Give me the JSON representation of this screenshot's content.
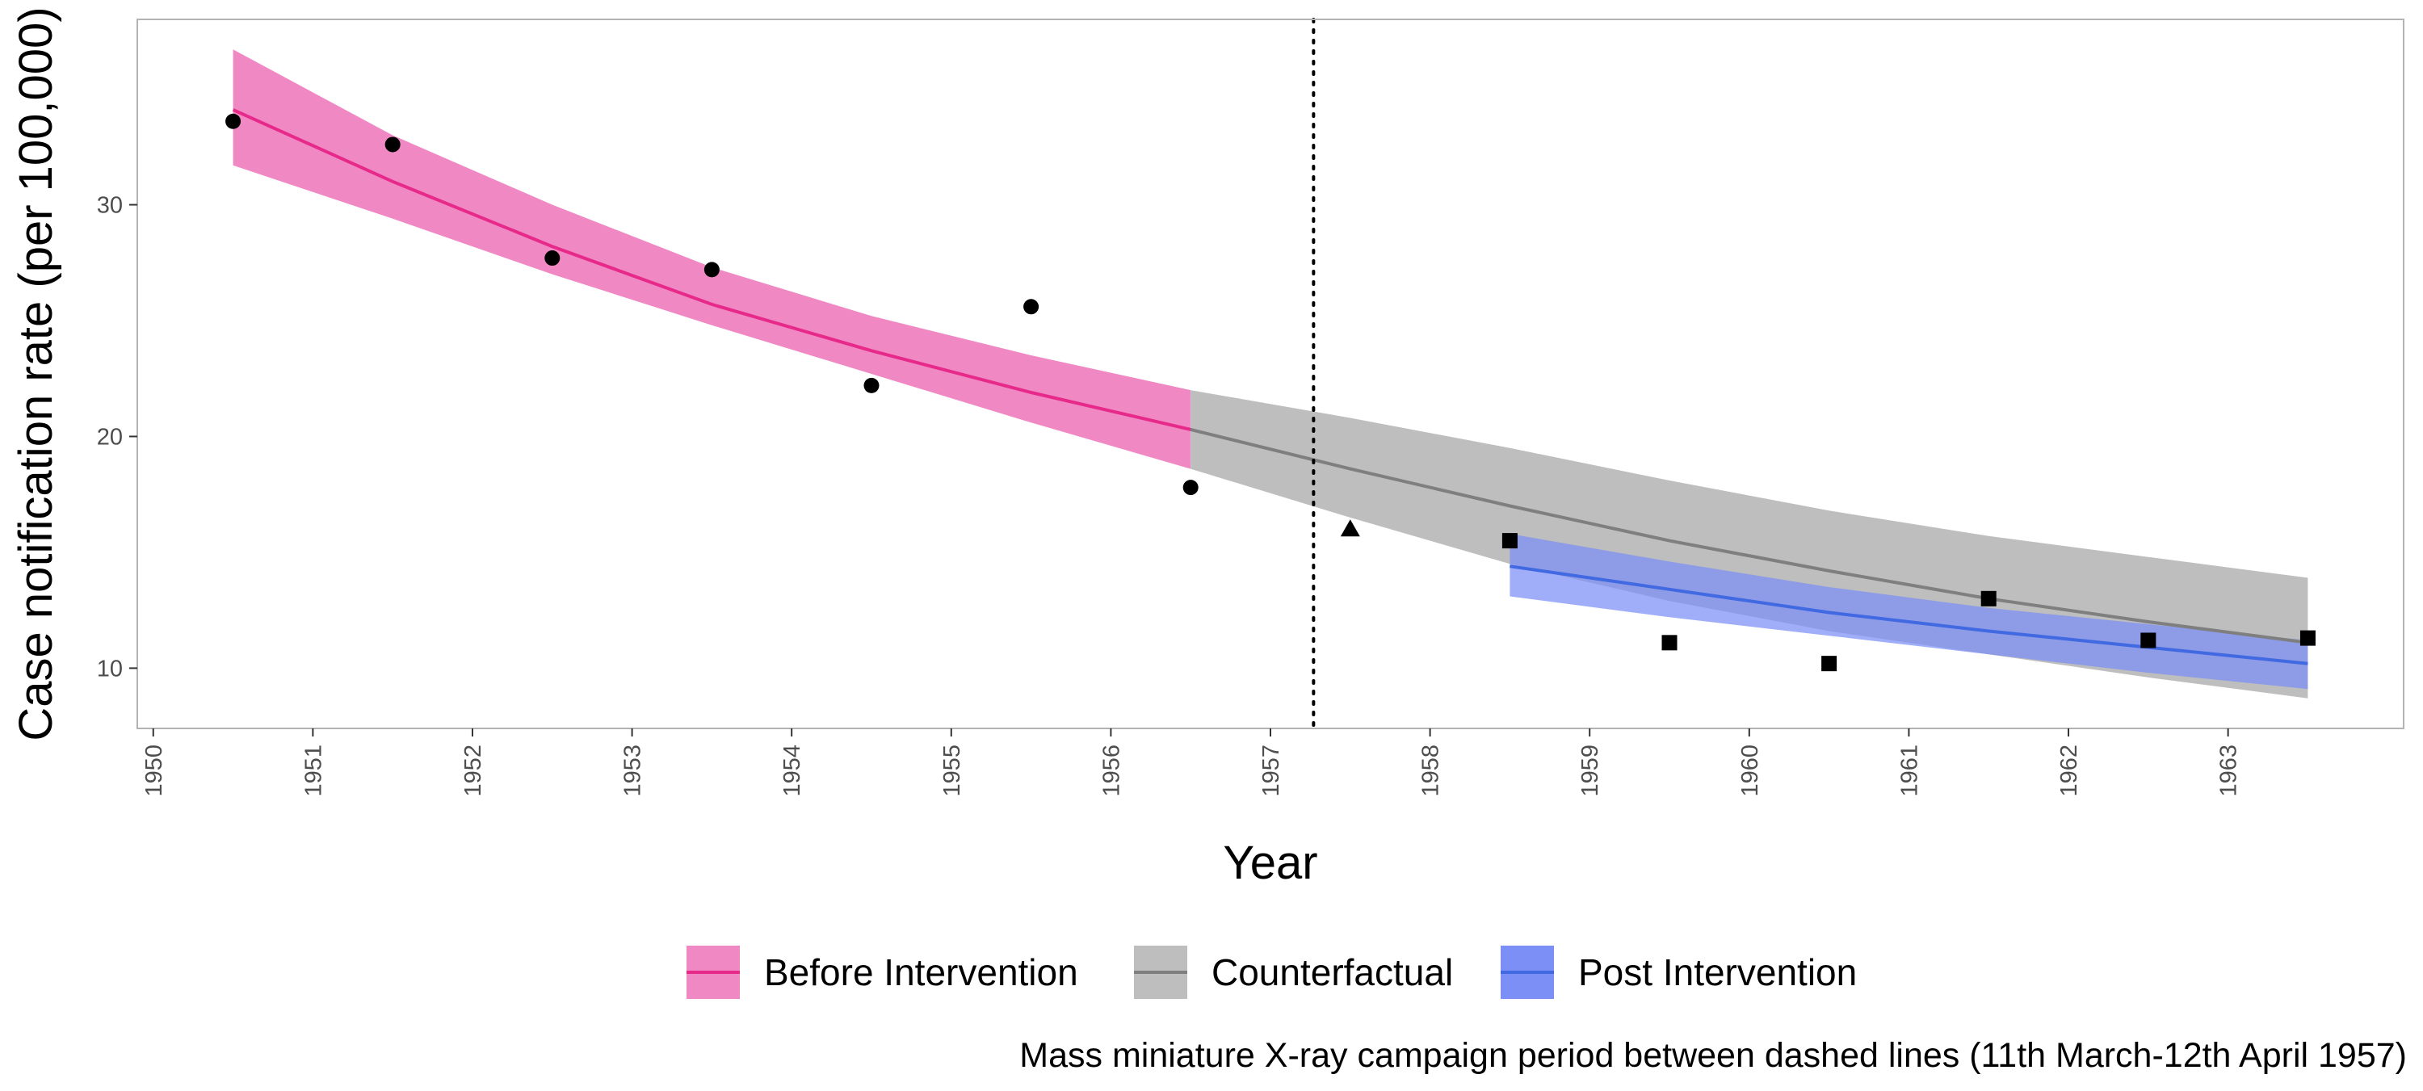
{
  "chart_data": {
    "type": "line",
    "xlabel": "Year",
    "ylabel": "Case notification rate (per 100,000)",
    "caption": "Mass miniature X-ray campaign period between dashed lines (11th March-12th April 1957)",
    "xlim": [
      1949.9,
      1964.1
    ],
    "ylim": [
      7.4,
      38.0
    ],
    "x_ticks": [
      "1950",
      "1951",
      "1952",
      "1953",
      "1954",
      "1955",
      "1956",
      "1957",
      "1958",
      "1959",
      "1960",
      "1961",
      "1962",
      "1963"
    ],
    "y_ticks": [
      "10",
      "20",
      "30"
    ],
    "grid": false,
    "legend_position": "bottom",
    "intervention_line_x": 1957.27,
    "series": [
      {
        "name": "Before Intervention",
        "color": "#E7298A",
        "fill": "#F088C4",
        "x": [
          1950.5,
          1951.5,
          1952.5,
          1953.5,
          1954.5,
          1955.5,
          1956.5
        ],
        "fit": [
          34.1,
          31.0,
          28.2,
          25.7,
          23.7,
          21.9,
          20.3
        ],
        "lower": [
          31.7,
          29.4,
          27.0,
          24.8,
          22.7,
          20.6,
          18.6
        ],
        "upper": [
          36.7,
          33.0,
          30.0,
          27.3,
          25.2,
          23.5,
          22.0
        ]
      },
      {
        "name": "Counterfactual",
        "color": "#7F7F7F",
        "fill": "#BEBEBE",
        "x": [
          1956.5,
          1957.5,
          1958.5,
          1959.5,
          1960.5,
          1961.5,
          1962.5,
          1963.5
        ],
        "fit": [
          20.3,
          18.6,
          17.0,
          15.5,
          14.2,
          13.0,
          12.0,
          11.1
        ],
        "lower": [
          18.6,
          16.5,
          14.5,
          12.9,
          11.6,
          10.6,
          9.6,
          8.7
        ],
        "upper": [
          22.0,
          20.8,
          19.5,
          18.1,
          16.8,
          15.7,
          14.8,
          13.9
        ]
      },
      {
        "name": "Post Intervention",
        "color": "#4169E1",
        "fill": "#7B8FF7",
        "x": [
          1958.5,
          1959.5,
          1960.5,
          1961.5,
          1962.5,
          1963.5
        ],
        "fit": [
          14.4,
          13.4,
          12.4,
          11.6,
          10.9,
          10.2
        ],
        "lower": [
          13.1,
          12.2,
          11.4,
          10.6,
          9.8,
          9.1
        ],
        "upper": [
          15.8,
          14.6,
          13.5,
          12.6,
          11.9,
          11.2
        ]
      }
    ],
    "observations": [
      {
        "x": 1950.5,
        "y": 33.6,
        "shape": "circle"
      },
      {
        "x": 1951.5,
        "y": 32.6,
        "shape": "circle"
      },
      {
        "x": 1952.5,
        "y": 27.7,
        "shape": "circle"
      },
      {
        "x": 1953.5,
        "y": 27.2,
        "shape": "circle"
      },
      {
        "x": 1954.5,
        "y": 22.2,
        "shape": "circle"
      },
      {
        "x": 1955.5,
        "y": 25.6,
        "shape": "circle"
      },
      {
        "x": 1956.5,
        "y": 17.8,
        "shape": "circle"
      },
      {
        "x": 1957.5,
        "y": 16.0,
        "shape": "triangle"
      },
      {
        "x": 1958.5,
        "y": 15.5,
        "shape": "square"
      },
      {
        "x": 1959.5,
        "y": 11.1,
        "shape": "square"
      },
      {
        "x": 1960.5,
        "y": 10.2,
        "shape": "square"
      },
      {
        "x": 1961.5,
        "y": 13.0,
        "shape": "square"
      },
      {
        "x": 1962.5,
        "y": 11.2,
        "shape": "square"
      },
      {
        "x": 1963.5,
        "y": 11.3,
        "shape": "square"
      }
    ]
  }
}
